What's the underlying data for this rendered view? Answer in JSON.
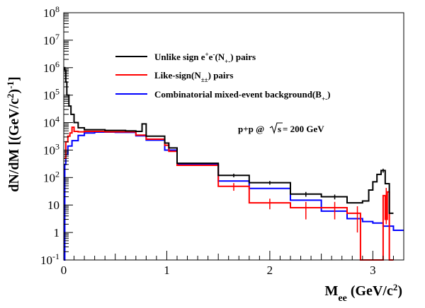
{
  "chart_data": {
    "type": "line",
    "xlabel": "M",
    "xlabel_sub": "ee",
    "xlabel_unit": "(GeV/c",
    "xlabel_unit_sup": "2",
    "xlabel_unit_tail": ")",
    "ylabel": "dN/dM [(GeV/c",
    "ylabel_sup": "2",
    "ylabel_mid": ")",
    "ylabel_sup2": "-1",
    "ylabel_tail": "]",
    "xlim": [
      0,
      3.3
    ],
    "ylim": [
      0.1,
      100000000
    ],
    "yscale": "log",
    "grid": false,
    "legend_position": "top-center",
    "x_ticks": [
      {
        "value": 0,
        "label": "0"
      },
      {
        "value": 1,
        "label": "1"
      },
      {
        "value": 2,
        "label": "2"
      },
      {
        "value": 3,
        "label": "3"
      }
    ],
    "y_ticks": [
      {
        "value": 0.1,
        "base": "10",
        "exp": "-1"
      },
      {
        "value": 1,
        "base": "1",
        "exp": ""
      },
      {
        "value": 10,
        "base": "10",
        "exp": ""
      },
      {
        "value": 100,
        "base": "10",
        "exp": "2"
      },
      {
        "value": 1000,
        "base": "10",
        "exp": "3"
      },
      {
        "value": 10000,
        "base": "10",
        "exp": "4"
      },
      {
        "value": 100000,
        "base": "10",
        "exp": "5"
      },
      {
        "value": 1000000,
        "base": "10",
        "exp": "6"
      },
      {
        "value": 10000000,
        "base": "10",
        "exp": "7"
      },
      {
        "value": 100000000,
        "base": "10",
        "exp": "8"
      }
    ],
    "annotation": {
      "pre": "p+p @",
      "root": "s",
      "post": " = 200 GeV"
    },
    "series": [
      {
        "key": "unlike",
        "color": "#000000",
        "legend": {
          "pre": "Unlike sign e",
          "sup1": "+",
          "mid": "e",
          "sup2": "-",
          "mid2": "(N",
          "sub": "+-",
          "post": ") pairs"
        },
        "steps": [
          [
            0.0,
            0.01,
            1000000
          ],
          [
            0.01,
            0.02,
            800000
          ],
          [
            0.02,
            0.03,
            300000
          ],
          [
            0.03,
            0.05,
            100000
          ],
          [
            0.05,
            0.07,
            40000
          ],
          [
            0.07,
            0.1,
            20000
          ],
          [
            0.1,
            0.14,
            10000
          ],
          [
            0.14,
            0.2,
            6500
          ],
          [
            0.2,
            0.4,
            5500
          ],
          [
            0.4,
            0.6,
            5200
          ],
          [
            0.6,
            0.7,
            5000
          ],
          [
            0.7,
            0.76,
            4800
          ],
          [
            0.76,
            0.8,
            9000
          ],
          [
            0.8,
            0.98,
            3200
          ],
          [
            0.98,
            1.02,
            1800
          ],
          [
            1.02,
            1.1,
            1200
          ],
          [
            1.1,
            1.5,
            330
          ],
          [
            1.5,
            1.8,
            120
          ],
          [
            1.8,
            2.2,
            65
          ],
          [
            2.2,
            2.5,
            25
          ],
          [
            2.5,
            2.75,
            20
          ],
          [
            2.75,
            2.9,
            12
          ],
          [
            2.9,
            2.96,
            14
          ],
          [
            2.96,
            3.0,
            35
          ],
          [
            3.0,
            3.04,
            70
          ],
          [
            3.04,
            3.08,
            130
          ],
          [
            3.08,
            3.12,
            180
          ],
          [
            3.12,
            3.16,
            60
          ],
          [
            3.16,
            3.2,
            5
          ]
        ],
        "errors": [
          [
            1.65,
            120,
            18
          ],
          [
            2.0,
            65,
            10
          ],
          [
            2.35,
            25,
            5
          ],
          [
            2.63,
            20,
            4
          ],
          [
            3.1,
            180,
            30
          ]
        ]
      },
      {
        "key": "like",
        "color": "#ff0000",
        "legend": {
          "pre": "Like-sign(N",
          "sub": "±±",
          "post": ") pairs"
        },
        "steps": [
          [
            0.0,
            0.02,
            500
          ],
          [
            0.02,
            0.04,
            2000
          ],
          [
            0.04,
            0.06,
            3200
          ],
          [
            0.06,
            0.08,
            4200
          ],
          [
            0.08,
            0.1,
            6800
          ],
          [
            0.1,
            0.14,
            4800
          ],
          [
            0.14,
            0.2,
            4600
          ],
          [
            0.2,
            0.4,
            4800
          ],
          [
            0.4,
            0.7,
            4600
          ],
          [
            0.7,
            0.8,
            3500
          ],
          [
            0.8,
            0.98,
            2500
          ],
          [
            0.98,
            1.02,
            1500
          ],
          [
            1.02,
            1.1,
            900
          ],
          [
            1.1,
            1.5,
            280
          ],
          [
            1.5,
            1.8,
            48
          ],
          [
            1.8,
            2.2,
            12
          ],
          [
            2.2,
            2.5,
            8
          ],
          [
            2.5,
            2.75,
            8
          ],
          [
            2.75,
            2.88,
            5
          ],
          [
            2.88,
            3.1,
            0.1
          ],
          [
            3.1,
            3.12,
            22
          ],
          [
            3.12,
            3.14,
            3
          ],
          [
            3.14,
            3.16,
            30
          ],
          [
            3.16,
            3.2,
            0.1
          ]
        ],
        "errors": [
          [
            1.65,
            48,
            15
          ],
          [
            2.0,
            12,
            5
          ],
          [
            2.35,
            8,
            5
          ],
          [
            2.63,
            8,
            5
          ],
          [
            2.85,
            5,
            4
          ],
          [
            3.13,
            22,
            20
          ]
        ]
      },
      {
        "key": "mixed",
        "color": "#0000ff",
        "legend": {
          "pre": "Combinatorial mixed-event background(B",
          "sub": "+-",
          "post": ")"
        },
        "steps": [
          [
            0.0,
            0.01,
            0.1
          ],
          [
            0.01,
            0.02,
            300
          ],
          [
            0.02,
            0.04,
            700
          ],
          [
            0.04,
            0.08,
            1400
          ],
          [
            0.08,
            0.14,
            2200
          ],
          [
            0.14,
            0.2,
            3400
          ],
          [
            0.2,
            0.3,
            4200
          ],
          [
            0.3,
            0.5,
            4500
          ],
          [
            0.5,
            0.7,
            4400
          ],
          [
            0.7,
            0.8,
            3300
          ],
          [
            0.8,
            0.98,
            2300
          ],
          [
            0.98,
            1.1,
            1000
          ],
          [
            1.1,
            1.5,
            300
          ],
          [
            1.5,
            1.8,
            75
          ],
          [
            1.8,
            2.2,
            40
          ],
          [
            2.2,
            2.5,
            15
          ],
          [
            2.5,
            2.75,
            6
          ],
          [
            2.75,
            2.9,
            3.2
          ],
          [
            2.9,
            3.0,
            2.5
          ],
          [
            3.0,
            3.1,
            2.2
          ],
          [
            3.1,
            3.2,
            1.7
          ],
          [
            3.2,
            3.3,
            1.2
          ]
        ],
        "errors": []
      }
    ]
  }
}
